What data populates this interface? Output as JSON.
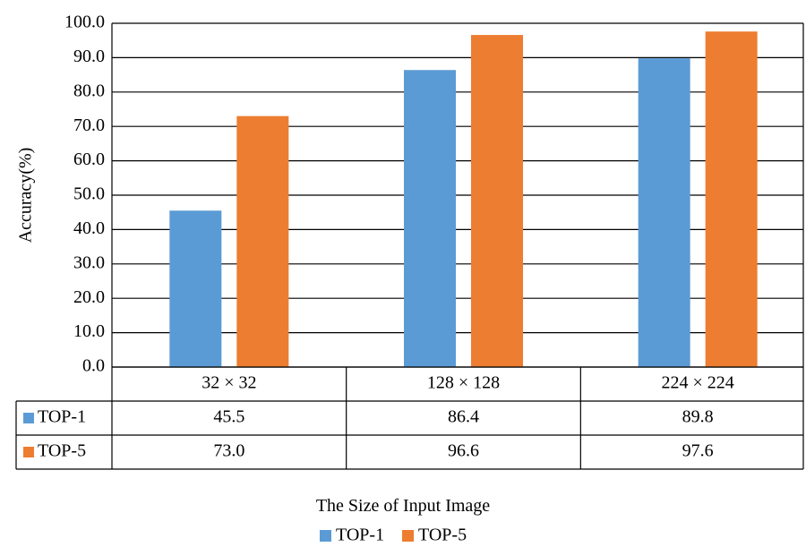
{
  "chart_data": {
    "type": "bar",
    "categories": [
      "32 × 32",
      "128 × 128",
      "224 × 224"
    ],
    "series": [
      {
        "name": "TOP-1",
        "values": [
          45.5,
          86.4,
          89.8
        ],
        "labels": [
          "45.5",
          "86.4",
          "89.8"
        ],
        "color": "#5B9BD5"
      },
      {
        "name": "TOP-5",
        "values": [
          73.0,
          96.6,
          97.6
        ],
        "labels": [
          "73.0",
          "96.6",
          "97.6"
        ],
        "color": "#ED7D31"
      }
    ],
    "ylabel": "Accuracy(%)",
    "xlabel": "The Size of Input Image",
    "ylim": [
      0,
      100
    ],
    "yticks": [
      "0.0",
      "10.0",
      "20.0",
      "30.0",
      "40.0",
      "50.0",
      "60.0",
      "70.0",
      "80.0",
      "90.0",
      "100.0"
    ],
    "grid": true,
    "legend": "bottom",
    "data_table": true
  }
}
